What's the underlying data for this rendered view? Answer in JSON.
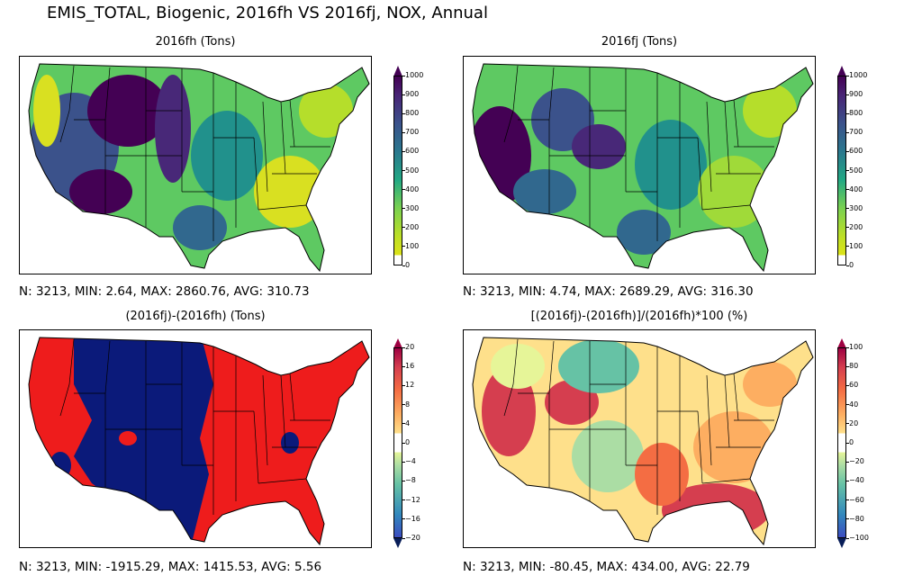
{
  "suptitle": "EMIS_TOTAL, Biogenic, 2016fh VS 2016fj, NOX, Annual",
  "panels": [
    {
      "title": "2016fh (Tons)",
      "stats": "N: 3213, MIN: 2.64, MAX: 2860.76, AVG: 310.73",
      "ticks": [
        "0",
        "100",
        "200",
        "300",
        "400",
        "500",
        "600",
        "700",
        "800",
        "900",
        "1000"
      ]
    },
    {
      "title": "2016fj (Tons)",
      "stats": "N: 3213, MIN: 4.74, MAX: 2689.29, AVG: 316.30",
      "ticks": [
        "0",
        "100",
        "200",
        "300",
        "400",
        "500",
        "600",
        "700",
        "800",
        "900",
        "1000"
      ]
    },
    {
      "title": "(2016fj)-(2016fh) (Tons)",
      "stats": "N: 3213, MIN: -1915.29, MAX: 1415.53, AVG: 5.56",
      "ticks": [
        "−20",
        "−16",
        "−12",
        "−8",
        "−4",
        "0",
        "4",
        "8",
        "12",
        "16",
        "20"
      ]
    },
    {
      "title": "[(2016fj)-(2016fh)]/(2016fh)*100 (%)",
      "stats": "N: 3213, MIN: -80.45, MAX: 434.00, AVG: 22.79",
      "ticks": [
        "−100",
        "−80",
        "−60",
        "−40",
        "−20",
        "0",
        "20",
        "40",
        "60",
        "80",
        "100"
      ]
    }
  ]
}
